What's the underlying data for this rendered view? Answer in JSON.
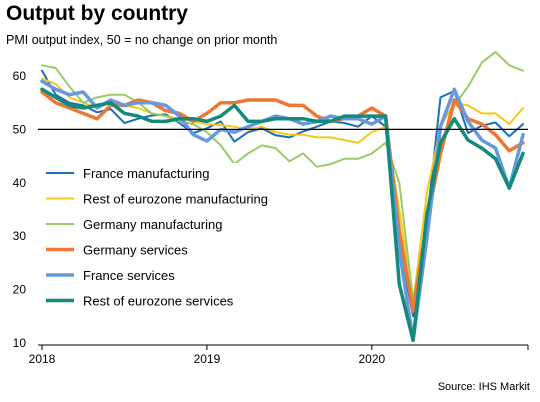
{
  "title": "Output by country",
  "subtitle": "PMI output index, 50 = no change on prior month",
  "source": "Source: IHS Markit",
  "chart_data": {
    "type": "line",
    "x_labels": [
      "2018",
      "2019",
      "2020"
    ],
    "x_start": "2018-01",
    "x_end": "2020-12",
    "y_ticks": [
      10,
      20,
      30,
      40,
      50,
      60
    ],
    "ylim": [
      10,
      66
    ],
    "reference_line": 50,
    "legend_position": "left",
    "series": [
      {
        "name": "France manufacturing",
        "color": "#1f6fb2",
        "width": 2,
        "values": [
          61.0,
          56.5,
          55.0,
          54.5,
          53.2,
          53.8,
          51.2,
          52.0,
          52.6,
          52.8,
          51.2,
          49.3,
          50.2,
          51.5,
          47.7,
          49.5,
          50.2,
          48.9,
          48.5,
          49.6,
          50.5,
          51.5,
          51.2,
          50.5,
          52.5,
          50.5,
          28.5,
          15.0,
          32.5,
          56.0,
          57.2,
          49.3,
          50.7,
          51.3,
          48.7,
          51.0
        ]
      },
      {
        "name": "Rest of eurozone manufacturing",
        "color": "#f5c81e",
        "width": 2,
        "values": [
          59.5,
          58.5,
          56.0,
          55.0,
          54.0,
          55.0,
          54.5,
          54.0,
          53.0,
          52.5,
          52.0,
          51.5,
          51.0,
          50.8,
          50.5,
          50.0,
          50.5,
          49.5,
          49.0,
          49.0,
          48.5,
          48.5,
          48.0,
          47.5,
          49.5,
          50.5,
          35.0,
          17.5,
          38.0,
          50.5,
          55.0,
          54.5,
          53.0,
          53.0,
          51.0,
          54.0
        ]
      },
      {
        "name": "Germany manufacturing",
        "color": "#99cc66",
        "width": 2,
        "values": [
          62.0,
          61.5,
          58.0,
          55.0,
          56.0,
          56.5,
          56.5,
          55.0,
          53.0,
          52.5,
          51.5,
          51.0,
          49.5,
          47.0,
          43.5,
          45.5,
          47.0,
          46.5,
          44.0,
          45.5,
          43.0,
          43.5,
          44.5,
          44.5,
          45.5,
          47.5,
          40.0,
          18.0,
          32.0,
          45.0,
          54.5,
          58.0,
          62.5,
          64.5,
          62.0,
          61.0
        ]
      },
      {
        "name": "Germany services",
        "color": "#ee7733",
        "width": 3.5,
        "values": [
          57.0,
          55.0,
          54.0,
          53.0,
          52.0,
          54.5,
          54.5,
          55.5,
          55.0,
          53.5,
          53.0,
          51.5,
          53.0,
          55.0,
          55.0,
          55.5,
          55.5,
          55.5,
          54.5,
          54.5,
          52.5,
          51.5,
          52.0,
          52.5,
          54.0,
          52.5,
          31.0,
          16.0,
          32.5,
          45.5,
          55.5,
          52.0,
          51.0,
          49.0,
          46.0,
          47.5
        ]
      },
      {
        "name": "France services",
        "color": "#6699dd",
        "width": 3.5,
        "values": [
          59.0,
          57.5,
          56.5,
          57.0,
          54.0,
          55.5,
          54.5,
          55.0,
          55.0,
          54.5,
          52.5,
          49.0,
          47.8,
          50.0,
          49.5,
          50.5,
          51.5,
          52.5,
          52.0,
          51.0,
          51.5,
          52.5,
          52.0,
          52.0,
          51.0,
          52.5,
          27.5,
          10.5,
          29.5,
          50.5,
          57.5,
          51.5,
          48.0,
          46.5,
          39.0,
          49.0
        ]
      },
      {
        "name": "Rest of eurozone services",
        "color": "#138b7b",
        "width": 3.5,
        "values": [
          57.5,
          56.0,
          54.5,
          54.0,
          54.5,
          55.0,
          53.0,
          52.5,
          51.5,
          51.5,
          52.0,
          52.0,
          51.5,
          52.5,
          54.5,
          51.5,
          51.5,
          52.0,
          52.0,
          52.0,
          51.5,
          51.5,
          52.5,
          52.5,
          52.5,
          52.5,
          21.0,
          10.5,
          34.0,
          47.5,
          52.0,
          48.0,
          46.5,
          44.5,
          39.0,
          45.5
        ]
      }
    ]
  }
}
